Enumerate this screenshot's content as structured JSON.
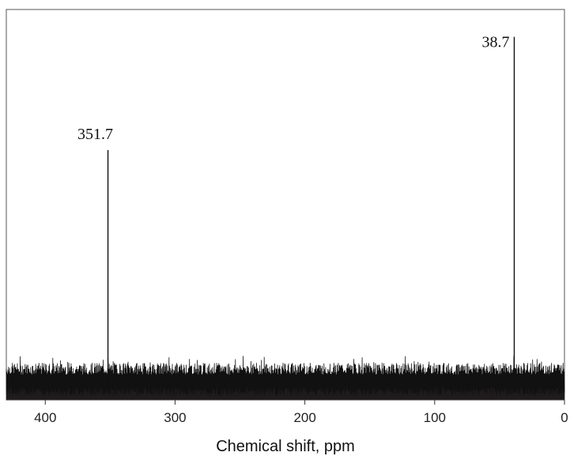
{
  "chart_data": {
    "type": "line",
    "title": "",
    "xlabel": "Chemical shift, ppm",
    "ylabel": "",
    "xlim": [
      430,
      0
    ],
    "x_reversed": true,
    "ylim": [
      0,
      1
    ],
    "grid": false,
    "legend": "none",
    "xticks": [
      400,
      300,
      200,
      100,
      0
    ],
    "xtick_labels": [
      "400",
      "300",
      "200",
      "100",
      "0"
    ],
    "series": [
      {
        "color": "#111111",
        "peaks": [
          {
            "x": 351.7,
            "y": 0.64,
            "label": "351.7"
          },
          {
            "x": 38.7,
            "y": 0.93,
            "label": "38.7"
          }
        ],
        "noise_floor": 0.065,
        "noise_amplitude": 0.03
      }
    ]
  }
}
